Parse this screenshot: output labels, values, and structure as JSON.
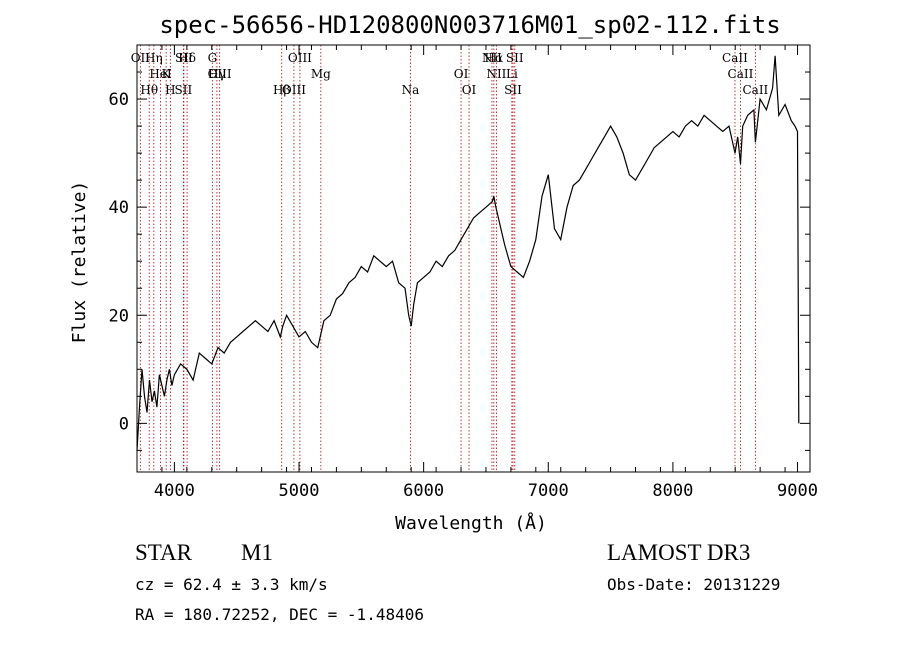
{
  "chart_data": {
    "type": "line",
    "title": "spec-56656-HD120800N003716M01_sp02-112.fits",
    "xlabel": "Wavelength (Å)",
    "ylabel": "Flux (relative)",
    "xlim": [
      3700,
      9100
    ],
    "ylim": [
      -9,
      70
    ],
    "xticks": [
      4000,
      5000,
      6000,
      7000,
      8000,
      9000
    ],
    "yticks": [
      0,
      20,
      40,
      60
    ],
    "grid": false,
    "series": [
      {
        "x": [
          3700,
          3720,
          3740,
          3760,
          3780,
          3800,
          3820,
          3840,
          3860,
          3880,
          3900,
          3920,
          3940,
          3960,
          3980,
          4000,
          4050,
          4100,
          4150,
          4200,
          4250,
          4300,
          4350,
          4400,
          4450,
          4500,
          4550,
          4600,
          4650,
          4700,
          4750,
          4800,
          4850,
          4870,
          4900,
          4950,
          5000,
          5050,
          5100,
          5150,
          5170,
          5200,
          5250,
          5300,
          5350,
          5400,
          5450,
          5500,
          5550,
          5600,
          5650,
          5700,
          5750,
          5800,
          5850,
          5880,
          5900,
          5920,
          5950,
          6000,
          6050,
          6100,
          6150,
          6200,
          6250,
          6300,
          6350,
          6400,
          6450,
          6500,
          6550,
          6563,
          6580,
          6600,
          6620,
          6650,
          6700,
          6750,
          6800,
          6850,
          6900,
          6950,
          7000,
          7050,
          7100,
          7150,
          7200,
          7250,
          7300,
          7350,
          7400,
          7450,
          7500,
          7550,
          7600,
          7650,
          7700,
          7750,
          7800,
          7850,
          7900,
          7950,
          8000,
          8050,
          8100,
          8150,
          8200,
          8250,
          8300,
          8350,
          8400,
          8450,
          8498,
          8520,
          8542,
          8560,
          8600,
          8650,
          8662,
          8700,
          8750,
          8800,
          8820,
          8850,
          8900,
          8950,
          8980,
          9000,
          9010
        ],
        "y": [
          -5,
          3,
          10,
          5,
          2,
          8,
          4,
          6,
          3,
          9,
          7,
          5,
          8,
          10,
          7,
          9,
          11,
          10,
          8,
          13,
          12,
          11,
          14,
          13,
          15,
          16,
          17,
          18,
          19,
          18,
          17,
          19,
          16,
          18,
          20,
          18,
          16,
          17,
          15,
          14,
          16,
          19,
          20,
          23,
          24,
          26,
          27,
          29,
          28,
          31,
          30,
          29,
          30,
          26,
          25,
          20,
          18,
          22,
          26,
          27,
          28,
          30,
          29,
          31,
          32,
          34,
          36,
          38,
          39,
          40,
          41,
          42,
          40,
          38,
          36,
          33,
          29,
          28,
          27,
          30,
          34,
          42,
          46,
          36,
          34,
          40,
          44,
          45,
          47,
          49,
          51,
          53,
          55,
          53,
          50,
          46,
          45,
          47,
          49,
          51,
          52,
          53,
          54,
          53,
          55,
          56,
          55,
          57,
          56,
          55,
          54,
          55,
          50,
          53,
          48,
          55,
          57,
          58,
          52,
          60,
          58,
          62,
          68,
          57,
          59,
          56,
          55,
          54,
          0
        ]
      }
    ],
    "lines": [
      {
        "name": "Hδ",
        "x": 4102
      },
      {
        "name": "Hγ",
        "x": 4341
      },
      {
        "name": "Hβ",
        "x": 4861
      },
      {
        "name": "Hα",
        "x": 6563
      },
      {
        "name": "K",
        "x": 3934
      },
      {
        "name": "H",
        "x": 3968
      },
      {
        "name": "G",
        "x": 4305
      },
      {
        "name": "Mg",
        "x": 5175
      },
      {
        "name": "Na",
        "x": 5894
      },
      {
        "name": "CaII",
        "x": 8498
      },
      {
        "name": "CaII",
        "x": 8542
      },
      {
        "name": "CaII",
        "x": 8662
      },
      {
        "name": "OII",
        "x": 3727
      },
      {
        "name": "OIII",
        "x": 4363
      },
      {
        "name": "OIII",
        "x": 4959
      },
      {
        "name": "OIII",
        "x": 5007
      },
      {
        "name": "OI",
        "x": 6300
      },
      {
        "name": "OI",
        "x": 6364
      },
      {
        "name": "NII",
        "x": 6548
      },
      {
        "name": "NII",
        "x": 6584
      },
      {
        "name": "SII",
        "x": 6717
      },
      {
        "name": "SII",
        "x": 6731
      },
      {
        "name": "Li",
        "x": 6708
      },
      {
        "name": "Hθ",
        "x": 3798
      },
      {
        "name": "Hη",
        "x": 3835
      },
      {
        "name": "HeI",
        "x": 3889
      },
      {
        "name": "SII",
        "x": 4072
      },
      {
        "name": "SII",
        "x": 4076
      }
    ]
  },
  "info": {
    "object_type": "STAR",
    "subclass": "M1",
    "survey": "LAMOST DR3",
    "redshift": "cz = 62.4 ± 3.3 km/s",
    "obs_date": "Obs-Date: 20131229",
    "coords": "RA = 180.72252, DEC =  -1.48406"
  }
}
